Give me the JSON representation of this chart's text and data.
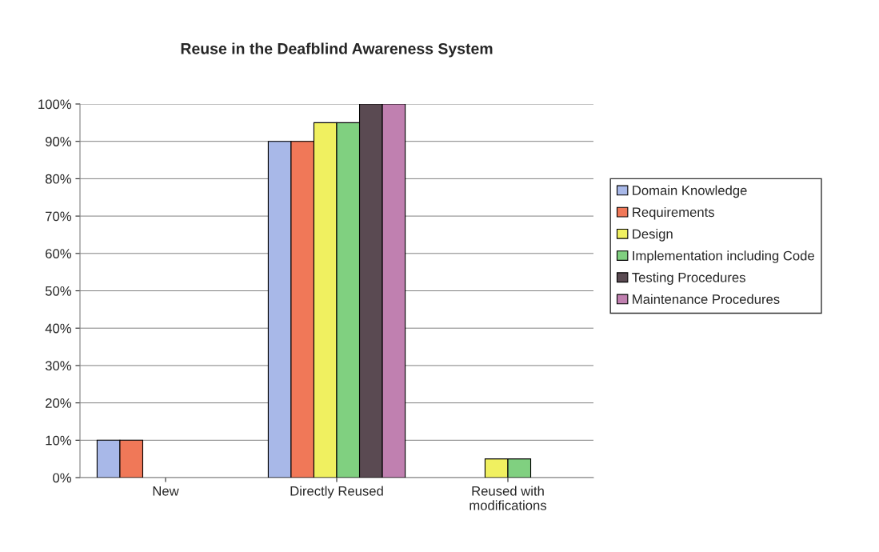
{
  "chart_data": {
    "type": "bar",
    "title": "Reuse in the Deafblind Awareness System",
    "categories": [
      "New",
      "Directly Reused",
      "Reused with\nmodifications"
    ],
    "series": [
      {
        "name": "Domain Knowledge",
        "color": "#a8b8e8",
        "values": [
          10,
          90,
          null
        ]
      },
      {
        "name": "Requirements",
        "color": "#f07858",
        "values": [
          10,
          90,
          null
        ]
      },
      {
        "name": "Design",
        "color": "#f0f060",
        "values": [
          null,
          95,
          5
        ]
      },
      {
        "name": "Implementation including Code",
        "color": "#80d080",
        "values": [
          null,
          95,
          5
        ]
      },
      {
        "name": "Testing Procedures",
        "color": "#5a4a52",
        "values": [
          null,
          100,
          null
        ]
      },
      {
        "name": "Maintenance Procedures",
        "color": "#c080b0",
        "values": [
          null,
          100,
          null
        ]
      }
    ],
    "ylim": [
      0,
      100
    ],
    "yticks": [
      {
        "value": 0,
        "label": "0%"
      },
      {
        "value": 10,
        "label": "10%"
      },
      {
        "value": 20,
        "label": "20%"
      },
      {
        "value": 30,
        "label": "30%"
      },
      {
        "value": 40,
        "label": "40%"
      },
      {
        "value": 50,
        "label": "50%"
      },
      {
        "value": 60,
        "label": "60%"
      },
      {
        "value": 70,
        "label": "70%"
      },
      {
        "value": 80,
        "label": "80%"
      },
      {
        "value": 90,
        "label": "90%"
      },
      {
        "value": 100,
        "label": "100%"
      }
    ],
    "grid": "y",
    "legend": "right"
  }
}
